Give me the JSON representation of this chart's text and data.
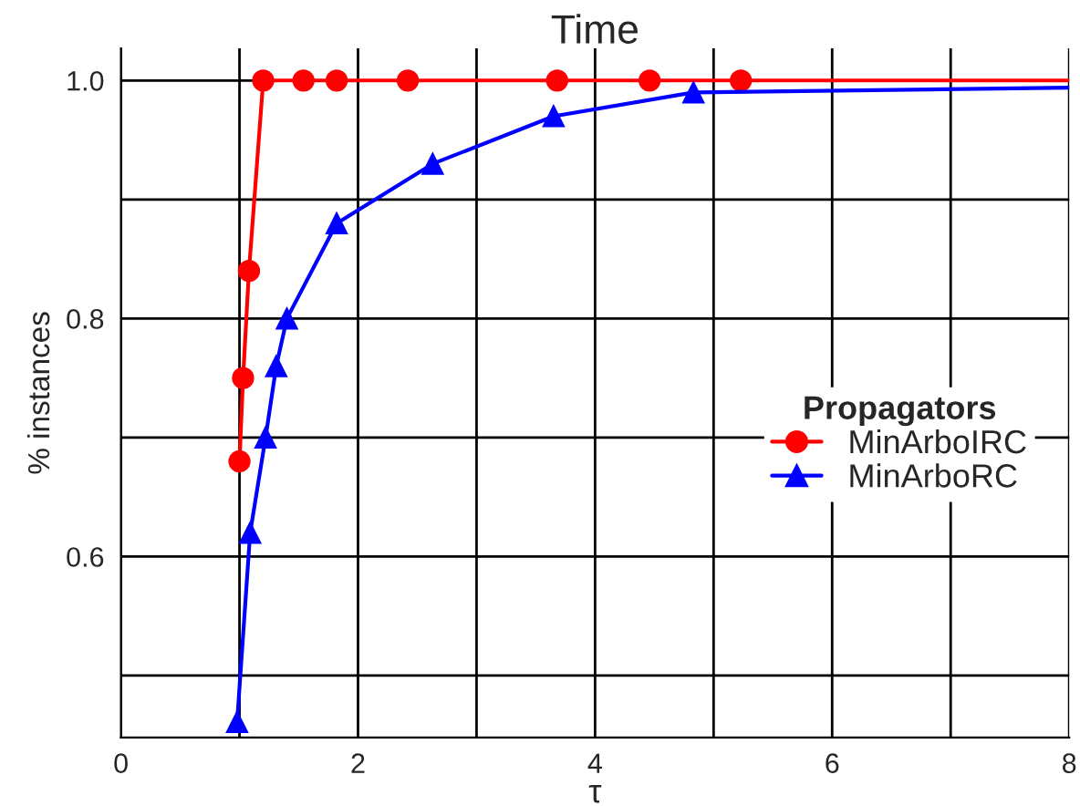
{
  "chart_data": {
    "type": "line",
    "title": "Time",
    "xlabel": "τ",
    "ylabel": "% instances",
    "legend_title": "Propagators",
    "series": [
      {
        "name": "MinArboIRC",
        "color": "#ff0000",
        "marker": "circle",
        "x": [
          1.0,
          1.03,
          1.08,
          1.2,
          1.54,
          1.82,
          2.42,
          3.68,
          4.46,
          5.23,
          8
        ],
        "values": [
          0.68,
          0.75,
          0.84,
          1.0,
          1.0,
          1.0,
          1.0,
          1.0,
          1.0,
          1.0,
          1.0
        ]
      },
      {
        "name": "MinArboRC",
        "color": "#0000ff",
        "marker": "triangle",
        "x": [
          0.98,
          1.09,
          1.22,
          1.31,
          1.4,
          1.82,
          2.63,
          3.65,
          4.83,
          8
        ],
        "values": [
          0.461,
          0.62,
          0.7,
          0.76,
          0.8,
          0.88,
          0.93,
          0.97,
          0.99,
          0.994
        ]
      }
    ],
    "xlim": [
      0,
      8
    ],
    "ylim": [
      0.448,
      1.027
    ],
    "xticks": [
      0,
      {
        "value": 1,
        "label": null
      },
      2,
      {
        "value": 3,
        "label": null
      },
      4,
      {
        "value": 5,
        "label": null
      },
      6,
      {
        "value": 7,
        "label": null
      },
      8
    ],
    "yticks": [
      {
        "value": 0.5,
        "label": null
      },
      0.6,
      {
        "value": 0.7,
        "label": null
      },
      0.8,
      {
        "value": 0.9,
        "label": null
      },
      {
        "value": 1.0,
        "label": "1.0"
      }
    ],
    "grid": true,
    "legend": "center right",
    "line_style": "solid"
  }
}
